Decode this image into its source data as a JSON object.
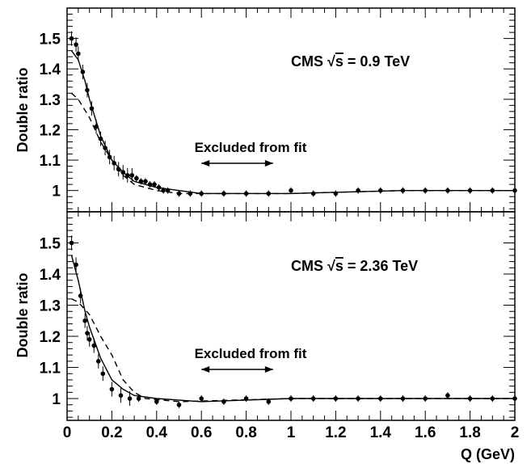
{
  "chart_data": [
    {
      "type": "scatter",
      "panel": "top",
      "title": "CMS √s = 0.9 TeV",
      "title_prefix": "CMS ",
      "sqrt_symbol": "√",
      "sqrt_arg": "s",
      "title_suffix": " = 0.9 TeV",
      "ylabel": "Double ratio",
      "xlim": [
        0,
        2
      ],
      "ylim": [
        0.93,
        1.6
      ],
      "yticks": [
        "1",
        "1.1",
        "1.2",
        "1.3",
        "1.4",
        "1.5"
      ],
      "annotation": "Excluded from fit",
      "excluded_range": [
        0.6,
        0.92
      ],
      "points": [
        [
          0.02,
          1.5
        ],
        [
          0.04,
          1.48
        ],
        [
          0.05,
          1.45
        ],
        [
          0.07,
          1.39
        ],
        [
          0.09,
          1.33
        ],
        [
          0.11,
          1.27
        ],
        [
          0.13,
          1.21
        ],
        [
          0.15,
          1.17
        ],
        [
          0.17,
          1.14
        ],
        [
          0.19,
          1.11
        ],
        [
          0.21,
          1.09
        ],
        [
          0.23,
          1.07
        ],
        [
          0.25,
          1.06
        ],
        [
          0.27,
          1.05
        ],
        [
          0.29,
          1.05
        ],
        [
          0.31,
          1.04
        ],
        [
          0.33,
          1.03
        ],
        [
          0.35,
          1.03
        ],
        [
          0.37,
          1.02
        ],
        [
          0.39,
          1.02
        ],
        [
          0.41,
          1.01
        ],
        [
          0.43,
          1.0
        ],
        [
          0.45,
          1.0
        ],
        [
          0.5,
          0.99
        ],
        [
          0.55,
          0.99
        ],
        [
          0.6,
          0.99
        ],
        [
          0.7,
          0.99
        ],
        [
          0.8,
          0.99
        ],
        [
          0.9,
          0.99
        ],
        [
          1.0,
          1.0
        ],
        [
          1.1,
          0.99
        ],
        [
          1.2,
          0.99
        ],
        [
          1.3,
          1.0
        ],
        [
          1.4,
          1.0
        ],
        [
          1.5,
          1.0
        ],
        [
          1.6,
          1.0
        ],
        [
          1.7,
          1.0
        ],
        [
          1.8,
          1.0
        ],
        [
          1.9,
          1.0
        ],
        [
          2.0,
          1.0
        ]
      ],
      "series": [
        {
          "name": "",
          "style": "solid",
          "points": [
            [
              0.02,
              1.46
            ],
            [
              0.05,
              1.43
            ],
            [
              0.08,
              1.36
            ],
            [
              0.1,
              1.3
            ],
            [
              0.15,
              1.18
            ],
            [
              0.2,
              1.1
            ],
            [
              0.25,
              1.06
            ],
            [
              0.3,
              1.03
            ],
            [
              0.4,
              1.01
            ],
            [
              0.5,
              1.0
            ],
            [
              0.6,
              0.99
            ],
            [
              1.0,
              0.99
            ],
            [
              1.5,
              1.0
            ],
            [
              2.0,
              1.0
            ]
          ]
        },
        {
          "name": "",
          "style": "dashed",
          "points": [
            [
              0.02,
              1.32
            ],
            [
              0.05,
              1.3
            ],
            [
              0.1,
              1.24
            ],
            [
              0.15,
              1.16
            ],
            [
              0.2,
              1.1
            ],
            [
              0.25,
              1.05
            ],
            [
              0.3,
              1.02
            ],
            [
              0.4,
              1.0
            ],
            [
              0.5,
              0.99
            ],
            [
              1.0,
              0.99
            ],
            [
              1.5,
              1.0
            ],
            [
              2.0,
              1.0
            ]
          ]
        }
      ]
    },
    {
      "type": "scatter",
      "panel": "bottom",
      "title": "CMS √s = 2.36 TeV",
      "title_prefix": "CMS ",
      "sqrt_symbol": "√",
      "sqrt_arg": "s",
      "title_suffix": " = 2.36 TeV",
      "ylabel": "Double ratio",
      "xlabel": "Q (GeV)",
      "xlim": [
        0,
        2
      ],
      "ylim": [
        0.93,
        1.6
      ],
      "xticks": [
        "0",
        "0.2",
        "0.4",
        "0.6",
        "0.8",
        "1",
        "1.2",
        "1.4",
        "1.6",
        "1.8",
        "2"
      ],
      "yticks": [
        "1",
        "1.1",
        "1.2",
        "1.3",
        "1.4",
        "1.5"
      ],
      "annotation": "Excluded from fit",
      "excluded_range": [
        0.6,
        0.92
      ],
      "points": [
        [
          0.02,
          1.5
        ],
        [
          0.04,
          1.43
        ],
        [
          0.06,
          1.33
        ],
        [
          0.08,
          1.25
        ],
        [
          0.09,
          1.21
        ],
        [
          0.1,
          1.19
        ],
        [
          0.12,
          1.17
        ],
        [
          0.14,
          1.12
        ],
        [
          0.16,
          1.08
        ],
        [
          0.2,
          1.03
        ],
        [
          0.24,
          1.01
        ],
        [
          0.28,
          1.0
        ],
        [
          0.32,
          1.0
        ],
        [
          0.4,
          0.99
        ],
        [
          0.5,
          0.98
        ],
        [
          0.6,
          1.0
        ],
        [
          0.7,
          0.99
        ],
        [
          0.8,
          1.0
        ],
        [
          0.9,
          0.99
        ],
        [
          1.0,
          1.0
        ],
        [
          1.1,
          1.0
        ],
        [
          1.2,
          1.0
        ],
        [
          1.3,
          1.0
        ],
        [
          1.4,
          1.0
        ],
        [
          1.5,
          1.0
        ],
        [
          1.6,
          1.0
        ],
        [
          1.7,
          1.01
        ],
        [
          1.8,
          1.0
        ],
        [
          1.9,
          1.0
        ],
        [
          2.0,
          1.0
        ]
      ],
      "series": [
        {
          "name": "",
          "style": "solid",
          "points": [
            [
              0.02,
              1.46
            ],
            [
              0.05,
              1.38
            ],
            [
              0.08,
              1.28
            ],
            [
              0.1,
              1.23
            ],
            [
              0.15,
              1.13
            ],
            [
              0.2,
              1.06
            ],
            [
              0.25,
              1.03
            ],
            [
              0.3,
              1.01
            ],
            [
              0.4,
              1.0
            ],
            [
              0.6,
              0.99
            ],
            [
              1.0,
              1.0
            ],
            [
              1.5,
              1.0
            ],
            [
              2.0,
              1.0
            ]
          ]
        },
        {
          "name": "",
          "style": "dashed",
          "points": [
            [
              0.02,
              1.32
            ],
            [
              0.05,
              1.31
            ],
            [
              0.1,
              1.27
            ],
            [
              0.15,
              1.2
            ],
            [
              0.2,
              1.14
            ],
            [
              0.25,
              1.06
            ],
            [
              0.3,
              1.02
            ],
            [
              0.35,
              1.0
            ],
            [
              0.5,
              0.99
            ],
            [
              1.0,
              1.0
            ],
            [
              1.5,
              1.0
            ],
            [
              2.0,
              1.0
            ]
          ]
        }
      ]
    }
  ]
}
